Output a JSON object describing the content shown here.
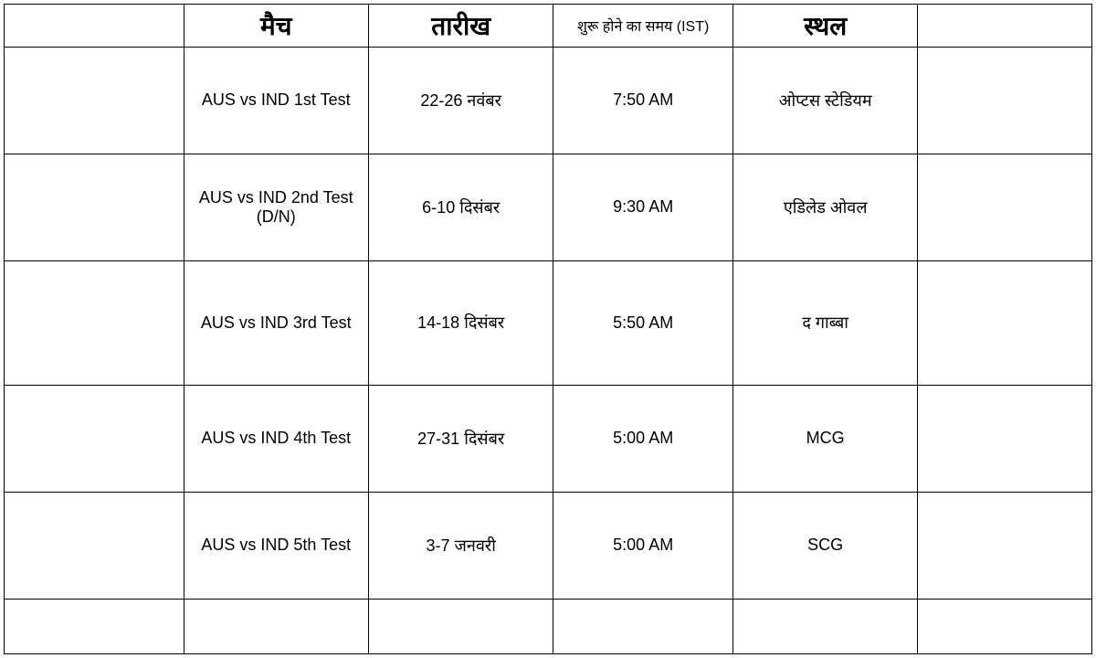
{
  "table": {
    "headers": {
      "match": "मैच",
      "date": "तारीख",
      "time": "शुरू होने का समय (IST)",
      "venue": "स्थल"
    },
    "rows": [
      {
        "match": "AUS vs IND 1st Test",
        "date": "22-26 नवंबर",
        "time": "7:50 AM",
        "venue": "ओप्टस स्टेडियम"
      },
      {
        "match": "AUS vs IND 2nd Test (D/N)",
        "date": "6-10 दिसंबर",
        "time": "9:30 AM",
        "venue": "एडिलेड ओवल"
      },
      {
        "match": "AUS vs IND 3rd Test",
        "date": "14-18 दिसंबर",
        "time": "5:50 AM",
        "venue": "द गाब्बा"
      },
      {
        "match": "AUS vs IND 4th Test",
        "date": "27-31 दिसंबर",
        "time": "5:00 AM",
        "venue": "MCG"
      },
      {
        "match": "AUS vs IND 5th Test",
        "date": "3-7 जनवरी",
        "time": "5:00 AM",
        "venue": "SCG"
      }
    ],
    "styling": {
      "border_color": "#000000",
      "background_color": "#ffffff",
      "text_color": "#000000",
      "header_fontsize": 28,
      "small_header_fontsize": 16,
      "cell_fontsize": 18,
      "columns": 6,
      "column_widths_percent": [
        16.5,
        17,
        17,
        16.5,
        17,
        16
      ]
    }
  }
}
